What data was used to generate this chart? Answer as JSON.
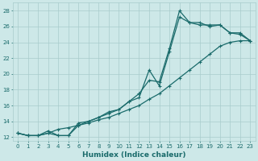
{
  "xlabel": "Humidex (Indice chaleur)",
  "ylabel": "",
  "background_color": "#cde8e8",
  "grid_color": "#a8cccc",
  "line_color": "#1a6b6b",
  "xlim": [
    -0.5,
    23.5
  ],
  "ylim": [
    11.5,
    29
  ],
  "yticks": [
    12,
    14,
    16,
    18,
    20,
    22,
    24,
    26,
    28
  ],
  "xticks": [
    0,
    1,
    2,
    3,
    4,
    5,
    6,
    7,
    8,
    9,
    10,
    11,
    12,
    13,
    14,
    15,
    16,
    17,
    18,
    19,
    20,
    21,
    22,
    23
  ],
  "line1_x": [
    0,
    1,
    2,
    3,
    4,
    5,
    6,
    7,
    8,
    9,
    10,
    11,
    12,
    13,
    14,
    15,
    16,
    17,
    18,
    19,
    20,
    21,
    22,
    23
  ],
  "line1_y": [
    12.5,
    12.2,
    12.2,
    12.5,
    13.0,
    13.2,
    13.5,
    13.8,
    14.2,
    14.5,
    15.0,
    15.5,
    16.0,
    16.8,
    17.5,
    18.5,
    19.5,
    20.5,
    21.5,
    22.5,
    23.5,
    24.0,
    24.2,
    24.2
  ],
  "line2_x": [
    0,
    1,
    2,
    3,
    4,
    5,
    6,
    7,
    8,
    9,
    10,
    11,
    12,
    13,
    14,
    15,
    16,
    17,
    18,
    19,
    20,
    21,
    22,
    23
  ],
  "line2_y": [
    12.5,
    12.2,
    12.2,
    12.8,
    12.2,
    12.2,
    13.8,
    14.0,
    14.5,
    15.0,
    15.5,
    16.5,
    17.0,
    20.5,
    18.5,
    22.8,
    27.2,
    26.5,
    26.2,
    26.2,
    26.2,
    25.2,
    25.2,
    24.2
  ],
  "line3_x": [
    0,
    1,
    2,
    3,
    4,
    5,
    6,
    7,
    8,
    9,
    10,
    11,
    12,
    13,
    14,
    15,
    16,
    17,
    18,
    19,
    20,
    21,
    22,
    23
  ],
  "line3_y": [
    12.5,
    12.2,
    12.2,
    12.5,
    12.2,
    12.2,
    13.5,
    14.0,
    14.5,
    15.2,
    15.5,
    16.5,
    17.5,
    19.2,
    19.0,
    23.2,
    28.0,
    26.5,
    26.5,
    26.0,
    26.2,
    25.2,
    25.0,
    24.2
  ]
}
